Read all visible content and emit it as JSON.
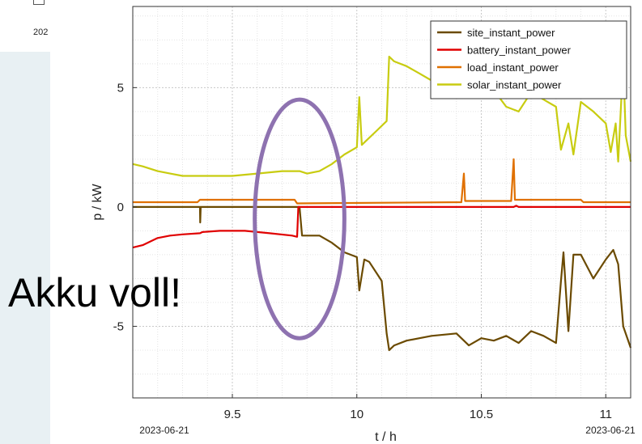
{
  "fragment": {
    "text": "202"
  },
  "annotation": "Akku voll!",
  "colors": {
    "site_instant_power": "#6b4a00",
    "battery_instant_power": "#e00000",
    "load_instant_power": "#e07000",
    "solar_instant_power": "#c8cc10",
    "highlight_ellipse": "#8e72b0"
  },
  "chart_data": {
    "type": "line",
    "xlabel": "t / h",
    "ylabel": "p / kW",
    "xlim": [
      9.1,
      11.1
    ],
    "ylim": [
      -8,
      8.4
    ],
    "xticks": [
      9.5,
      10,
      10.5,
      11
    ],
    "xtick_labels": [
      "9.5",
      "10",
      "10.5",
      "11"
    ],
    "yticks": [
      -5,
      0,
      5
    ],
    "ytick_labels": [
      "-5",
      "0",
      "5"
    ],
    "date_labels": [
      "2023-06-21",
      "2023-06-21"
    ],
    "grid": true,
    "legend_position": "top-right",
    "highlight": {
      "shape": "ellipse",
      "center": [
        9.77,
        -0.5
      ],
      "semi_axes": [
        0.18,
        5.0
      ]
    },
    "series": [
      {
        "name": "site_instant_power",
        "color": "#6b4a00",
        "x": [
          9.1,
          9.37,
          9.371,
          9.373,
          9.6,
          9.77,
          9.78,
          9.85,
          9.9,
          9.95,
          10.0,
          10.01,
          10.03,
          10.05,
          10.1,
          10.12,
          10.13,
          10.15,
          10.2,
          10.3,
          10.4,
          10.45,
          10.5,
          10.55,
          10.6,
          10.65,
          10.7,
          10.75,
          10.8,
          10.82,
          10.83,
          10.85,
          10.87,
          10.9,
          10.95,
          11.0,
          11.03,
          11.05,
          11.07,
          11.1
        ],
        "y": [
          0,
          0,
          -0.65,
          0,
          0,
          0,
          -1.2,
          -1.2,
          -1.5,
          -1.9,
          -2.1,
          -3.5,
          -2.2,
          -2.3,
          -3.1,
          -5.3,
          -6.0,
          -5.8,
          -5.6,
          -5.4,
          -5.3,
          -5.8,
          -5.5,
          -5.6,
          -5.4,
          -5.7,
          -5.2,
          -5.4,
          -5.7,
          -3.1,
          -1.9,
          -5.2,
          -2.0,
          -2.0,
          -3.0,
          -2.2,
          -1.8,
          -2.4,
          -5.0,
          -5.9
        ]
      },
      {
        "name": "battery_instant_power",
        "color": "#e00000",
        "x": [
          9.1,
          9.14,
          9.2,
          9.25,
          9.3,
          9.37,
          9.38,
          9.45,
          9.55,
          9.65,
          9.74,
          9.76,
          9.765,
          9.77,
          9.8,
          10.0,
          10.63,
          10.64,
          10.65,
          11.1
        ],
        "y": [
          -1.7,
          -1.6,
          -1.3,
          -1.2,
          -1.15,
          -1.1,
          -1.05,
          -1.0,
          -1.0,
          -1.1,
          -1.2,
          -1.25,
          0,
          0,
          0,
          0,
          0,
          0.05,
          0,
          0
        ]
      },
      {
        "name": "load_instant_power",
        "color": "#e07000",
        "x": [
          9.1,
          9.36,
          9.37,
          9.75,
          9.76,
          10.42,
          10.43,
          10.435,
          10.44,
          10.62,
          10.63,
          10.635,
          10.64,
          10.9,
          10.91,
          11.1
        ],
        "y": [
          0.2,
          0.2,
          0.3,
          0.3,
          0.15,
          0.2,
          1.4,
          0.25,
          0.25,
          0.25,
          2.0,
          0.3,
          0.3,
          0.3,
          0.2,
          0.2
        ]
      },
      {
        "name": "solar_instant_power",
        "color": "#c8cc10",
        "x": [
          9.1,
          9.14,
          9.2,
          9.25,
          9.3,
          9.4,
          9.5,
          9.6,
          9.7,
          9.77,
          9.8,
          9.85,
          9.9,
          9.95,
          10.0,
          10.01,
          10.02,
          10.04,
          10.08,
          10.12,
          10.13,
          10.15,
          10.2,
          10.25,
          10.3,
          10.35,
          10.4,
          10.45,
          10.5,
          10.55,
          10.6,
          10.65,
          10.7,
          10.75,
          10.8,
          10.82,
          10.85,
          10.87,
          10.9,
          10.95,
          11.0,
          11.02,
          11.04,
          11.05,
          11.07,
          11.08,
          11.1
        ],
        "y": [
          1.8,
          1.7,
          1.5,
          1.4,
          1.3,
          1.3,
          1.3,
          1.4,
          1.5,
          1.5,
          1.4,
          1.5,
          1.8,
          2.2,
          2.5,
          4.6,
          2.6,
          2.8,
          3.2,
          3.6,
          6.3,
          6.1,
          5.9,
          5.6,
          5.3,
          5.2,
          5.4,
          5.0,
          5.5,
          4.9,
          4.2,
          4.0,
          4.8,
          4.5,
          4.2,
          2.4,
          3.5,
          2.2,
          4.4,
          4.0,
          3.5,
          2.3,
          3.5,
          1.9,
          6.1,
          3.0,
          1.9
        ]
      }
    ]
  }
}
